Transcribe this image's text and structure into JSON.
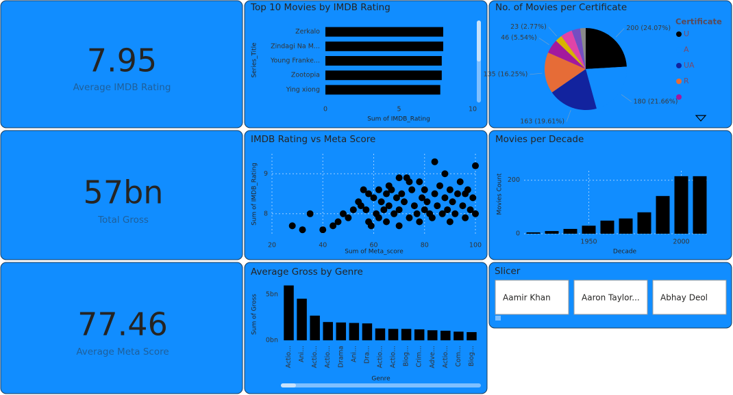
{
  "cards": [
    {
      "value": "7.95",
      "label": "Average IMDB Rating"
    },
    {
      "value": "57bn",
      "label": "Total Gross"
    },
    {
      "value": "77.46",
      "label": "Average Meta Score"
    }
  ],
  "chart_data": [
    {
      "type": "hbar",
      "title": "Top 10 Movies by IMDB Rating",
      "x_label": "Sum of IMDB_Rating",
      "y_label": "Series_Title",
      "categories": [
        "Zerkalo",
        "Zindagi Na M...",
        "Young Franke...",
        "Zootopia",
        "Ying xiong"
      ],
      "values": [
        8.0,
        8.0,
        7.9,
        7.9,
        7.8
      ],
      "color": "#000000",
      "xlim": [
        0,
        10
      ],
      "xticks": [
        0,
        5,
        10
      ]
    },
    {
      "type": "pie",
      "title": "No. of Movies per Certificate",
      "legend_title": "Certificate",
      "categories": [
        "U",
        "A",
        "UA",
        "R",
        null,
        null,
        null,
        null,
        null
      ],
      "values": [
        200,
        180,
        163,
        135,
        46,
        23,
        38,
        28,
        18
      ],
      "value_labels": [
        "200 (24.07%)",
        "180 (21.66%)",
        "163 (19.61%)",
        "135 (16.25%)",
        "46 (5.54%)",
        "23 (2.77%)",
        null,
        null,
        null
      ],
      "colors": [
        "#000000",
        "#118DFF",
        "#12239E",
        "#E66C37",
        "#A3199E",
        "#D9B300",
        "#E044A7",
        "#744EC2",
        "#8A8A8A"
      ]
    },
    {
      "type": "scatter",
      "title": "IMDB Rating vs Meta Score",
      "x_label": "Sum of Meta_score",
      "y_label": "Sum of IMDB_Rating",
      "color": "#000000",
      "xlim": [
        20,
        100
      ],
      "xticks": [
        20,
        40,
        60,
        80,
        100
      ],
      "ylim": [
        7.45,
        9.5
      ],
      "yticks": [
        8,
        9
      ],
      "grid": true,
      "x": [
        28,
        32,
        35,
        40,
        44,
        46,
        48,
        50,
        52,
        54,
        55,
        56,
        57,
        58,
        58,
        59,
        60,
        61,
        62,
        62,
        63,
        64,
        65,
        65,
        66,
        67,
        68,
        69,
        70,
        70,
        71,
        72,
        73,
        74,
        75,
        76,
        77,
        78,
        78,
        79,
        80,
        80,
        81,
        82,
        83,
        84,
        85,
        86,
        87,
        88,
        89,
        90,
        90,
        91,
        92,
        93,
        94,
        95,
        96,
        97,
        98,
        99,
        100,
        100,
        84,
        70,
        66,
        74,
        88,
        96
      ],
      "y": [
        7.7,
        7.6,
        8.0,
        7.6,
        7.7,
        7.8,
        8.0,
        7.9,
        8.1,
        8.3,
        8.2,
        8.6,
        8.1,
        7.8,
        8.5,
        7.7,
        8.4,
        8.0,
        8.6,
        7.9,
        8.3,
        8.1,
        8.5,
        7.8,
        8.2,
        8.6,
        8.0,
        8.4,
        8.1,
        7.7,
        8.5,
        8.3,
        8.9,
        7.9,
        8.6,
        8.2,
        8.0,
        8.8,
        7.8,
        8.4,
        8.1,
        8.6,
        8.3,
        8.0,
        7.9,
        8.5,
        8.2,
        8.7,
        8.0,
        8.4,
        8.1,
        7.8,
        8.6,
        8.3,
        8.0,
        8.5,
        8.8,
        8.2,
        7.9,
        8.6,
        8.1,
        8.4,
        9.2,
        8.0,
        9.3,
        8.9,
        8.7,
        8.8,
        9.0,
        8.5
      ]
    },
    {
      "type": "bar",
      "title": "Movies per Decade",
      "x_label": "Decade",
      "y_label": "Movies Count",
      "color": "#000000",
      "x": [
        1920,
        1930,
        1940,
        1950,
        1960,
        1970,
        1980,
        1990,
        2000,
        2010
      ],
      "values": [
        5,
        10,
        18,
        30,
        49,
        57,
        80,
        141,
        215,
        215
      ],
      "xlim": [
        1915,
        2015
      ],
      "xticks": [
        1950,
        2000
      ],
      "ylim": [
        0,
        235
      ],
      "yticks": [
        0,
        200
      ],
      "grid": true
    },
    {
      "type": "column",
      "title": "Average Gross by Genre",
      "x_label": "Genre",
      "y_label": "Sum of Gross",
      "color": "#000000",
      "categories": [
        "Actio...",
        "Ani...",
        "Actio...",
        "Actio...",
        "Drama",
        "Ani...",
        "Dra...",
        "Actio...",
        "Actio...",
        "Biog...",
        "Crim...",
        "Adve...",
        "Actio...",
        "Com...",
        "Biog..."
      ],
      "values": [
        6000000000,
        4550000000,
        2700000000,
        2000000000,
        1950000000,
        1900000000,
        1850000000,
        1300000000,
        1250000000,
        1250000000,
        1200000000,
        1100000000,
        1050000000,
        950000000,
        900000000
      ],
      "ylim": [
        0,
        6200000000
      ],
      "yticks": [
        {
          "value": 0,
          "label": "0bn"
        },
        {
          "value": 5000000000,
          "label": "5bn"
        }
      ]
    }
  ],
  "slicer": {
    "title": "Slicer",
    "items": [
      "Aamir Khan",
      "Aaron Taylor...",
      "Abhay Deol"
    ]
  }
}
